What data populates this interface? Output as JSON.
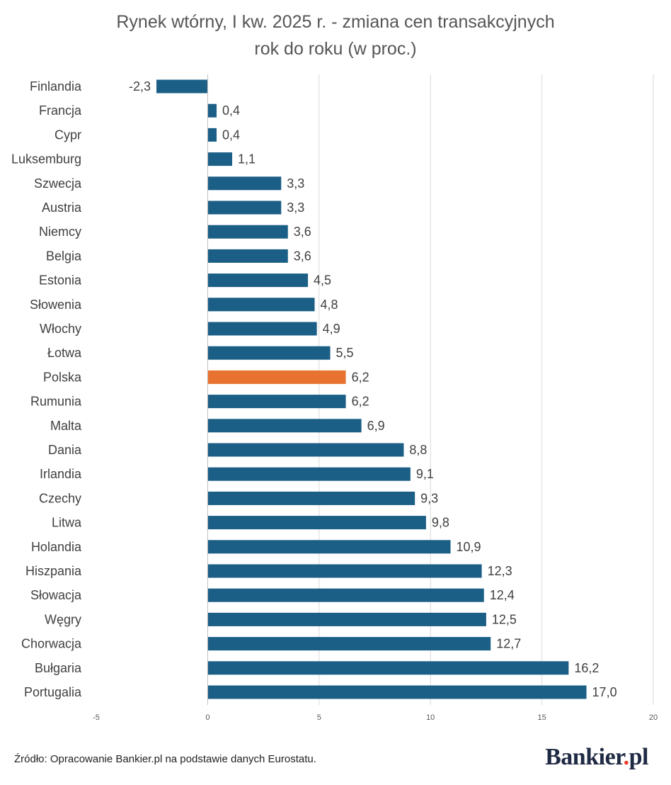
{
  "chart_data": {
    "type": "bar",
    "orientation": "horizontal",
    "title_lines": [
      "Rynek wtórny, I kw. 2025 r. - zmiana cen transakcyjnych",
      "rok do roku (w proc.)"
    ],
    "categories": [
      "Finlandia",
      "Francja",
      "Cypr",
      "Luksemburg",
      "Szwecja",
      "Austria",
      "Niemcy",
      "Belgia",
      "Estonia",
      "Słowenia",
      "Włochy",
      "Łotwa",
      "Polska",
      "Rumunia",
      "Malta",
      "Dania",
      "Irlandia",
      "Czechy",
      "Litwa",
      "Holandia",
      "Hiszpania",
      "Słowacja",
      "Węgry",
      "Chorwacja",
      "Bułgaria",
      "Portugalia"
    ],
    "values": [
      -2.3,
      0.4,
      0.4,
      1.1,
      3.3,
      3.3,
      3.6,
      3.6,
      4.5,
      4.8,
      4.9,
      5.5,
      6.2,
      6.2,
      6.9,
      8.8,
      9.1,
      9.3,
      9.8,
      10.9,
      12.3,
      12.4,
      12.5,
      12.7,
      16.2,
      17.0
    ],
    "value_labels": [
      "-2,3",
      "0,4",
      "0,4",
      "1,1",
      "3,3",
      "3,3",
      "3,6",
      "3,6",
      "4,5",
      "4,8",
      "4,9",
      "5,5",
      "6,2",
      "6,2",
      "6,9",
      "8,8",
      "9,1",
      "9,3",
      "9,8",
      "10,9",
      "12,3",
      "12,4",
      "12,5",
      "12,7",
      "16,2",
      "17,0"
    ],
    "highlight_category": "Polska",
    "xlim": [
      -5,
      20
    ],
    "xticks": [
      -5,
      0,
      5,
      10,
      15,
      20
    ],
    "xtick_labels": [
      "-5",
      "0",
      "5",
      "10",
      "15",
      "20"
    ],
    "grid": true,
    "legend": "none",
    "colors": {
      "bar": "#1b5e86",
      "highlight": "#e87330",
      "grid": "#d9d9d9"
    }
  },
  "footer": {
    "source": "Źródło: Opracowanie Bankier.pl na podstawie danych Eurostatu.",
    "logo_main": "Bankier",
    "logo_dot": ".",
    "logo_suffix": "pl"
  }
}
